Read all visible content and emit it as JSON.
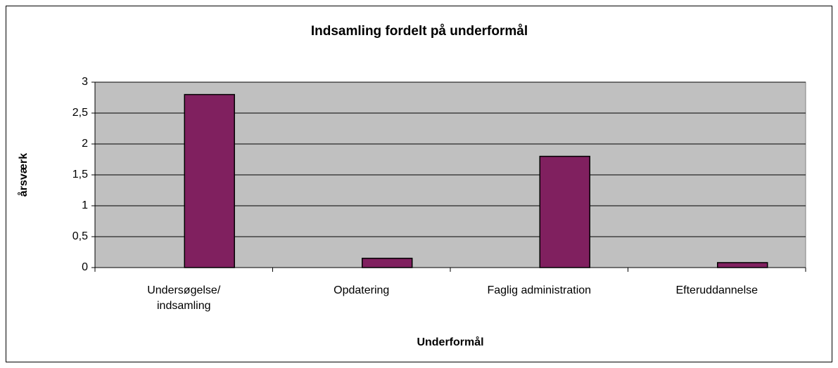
{
  "chart_data": {
    "type": "bar",
    "title": "Indsamling fordelt på underformål",
    "x_label": "Underformål",
    "y_label": "årsværk",
    "categories": [
      "Undersøgelse/\nindsamling",
      "Opdatering",
      "Faglig administration",
      "Efteruddannelse"
    ],
    "values": [
      2.8,
      0.15,
      1.8,
      0.08
    ],
    "color": "#80205f",
    "ylim": [
      0,
      3
    ],
    "yticks": [
      0,
      {
        "value": 0.5,
        "label": "0,5"
      },
      1,
      {
        "value": 1.5,
        "label": "1,5"
      },
      2,
      {
        "value": 2.5,
        "label": "2,5"
      },
      3
    ],
    "grid": true
  }
}
